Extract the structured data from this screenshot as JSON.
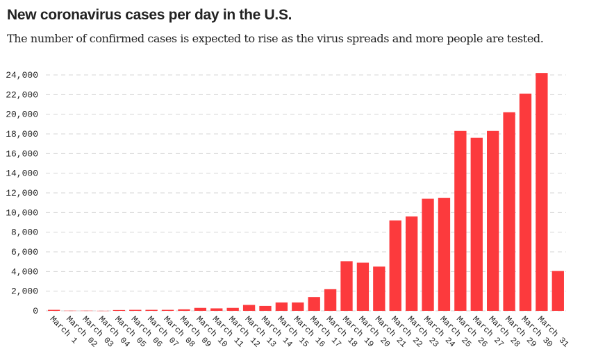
{
  "chart_data": {
    "type": "bar",
    "title": "New coronavirus cases per day in the U.S.",
    "subtitle": "The number of confirmed cases is expected to rise as the virus spreads and more people are tested.",
    "xlabel": "",
    "ylabel": "",
    "ylim": [
      0,
      24000
    ],
    "yticks": [
      0,
      2000,
      4000,
      6000,
      8000,
      10000,
      12000,
      14000,
      16000,
      18000,
      20000,
      22000,
      24000
    ],
    "ytick_labels": [
      "0",
      "2,000",
      "4,000",
      "6,000",
      "8,000",
      "10,000",
      "12,000",
      "14,000",
      "16,000",
      "18,000",
      "20,000",
      "22,000",
      "24,000"
    ],
    "grid": true,
    "categories": [
      "March 1",
      "March 02",
      "March 03",
      "March 04",
      "March 05",
      "March 06",
      "March 07",
      "March 08",
      "March 09",
      "March 10",
      "March 11",
      "March 12",
      "March 13",
      "March 14",
      "March 15",
      "March 16",
      "March 17",
      "March 18",
      "March 19",
      "March 20",
      "March 21",
      "March 22",
      "March 23",
      "March 24",
      "March 25",
      "March 26",
      "March 27",
      "March 28",
      "March 29",
      "March 30",
      "March 31",
      ""
    ],
    "values": [
      100,
      20,
      20,
      10,
      80,
      100,
      100,
      100,
      150,
      300,
      250,
      300,
      600,
      500,
      850,
      850,
      1400,
      2200,
      5050,
      4900,
      4500,
      9200,
      9600,
      11400,
      11500,
      18300,
      17600,
      18300,
      20200,
      22100,
      24200,
      4050
    ],
    "bar_color": "#fc3a3d"
  }
}
